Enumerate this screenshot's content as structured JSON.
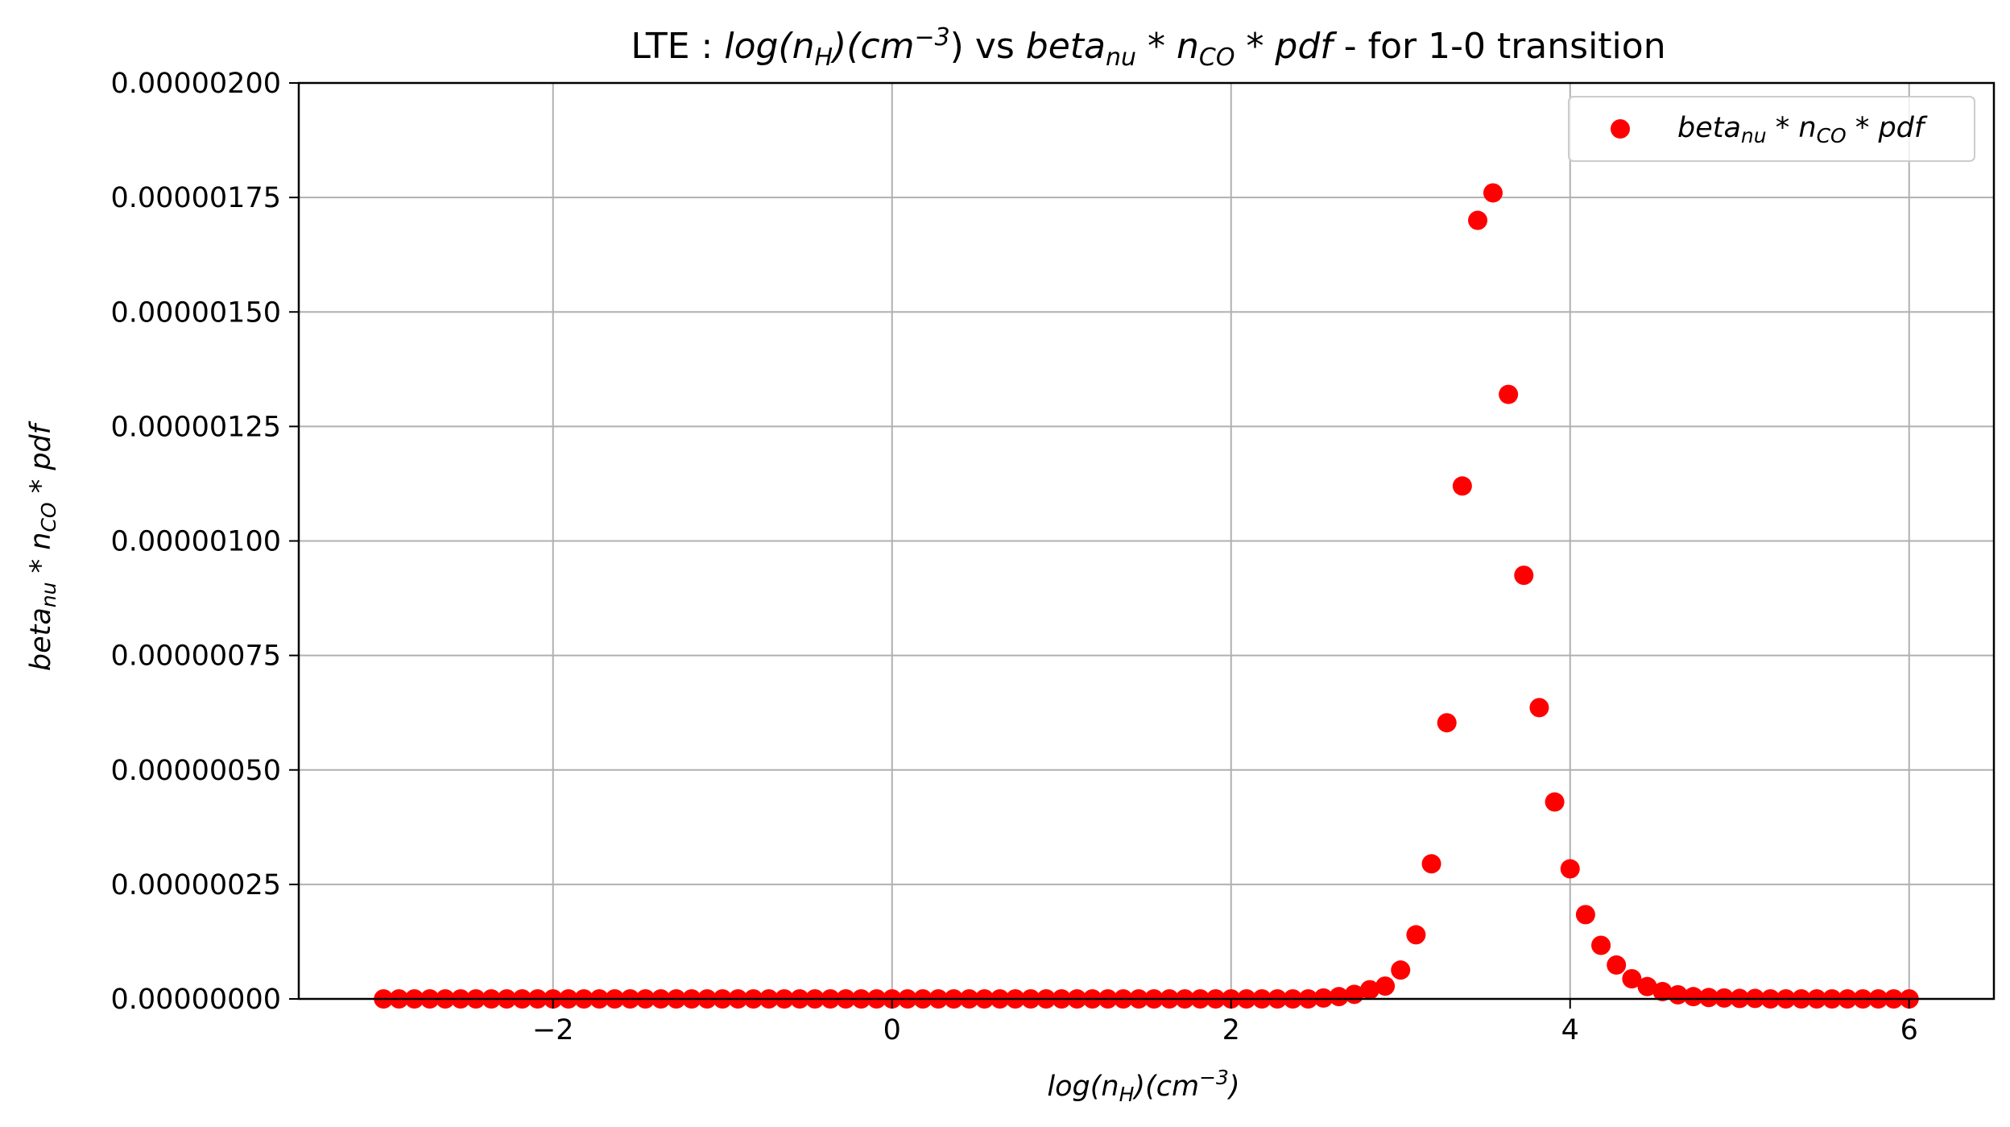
{
  "chart_data": {
    "type": "scatter",
    "title": {
      "prefix": "LTE : ",
      "x_quantity": "log(n",
      "x_sub": "H",
      "x_mid": ")(cm",
      "x_sup": "−3",
      "x_end": ")",
      "vs": " vs ",
      "y_beta": "beta",
      "y_sub_nu": "nu",
      "y_star1": " * n",
      "y_sub_co": "CO",
      "y_star2": " * pdf",
      "suffix": " - for 1-0 transition"
    },
    "xlabel": {
      "main": "log(n",
      "sub": "H",
      "mid": ")(cm",
      "sup": "−3",
      "end": ")"
    },
    "ylabel": {
      "beta": "beta",
      "sub_nu": "nu",
      "star1": " * n",
      "sub_co": "CO",
      "star2": " * pdf"
    },
    "legend": {
      "position": "top-right",
      "beta": "beta",
      "sub_nu": "nu",
      "star1": " * n",
      "sub_co": "CO",
      "star2": " * pdf"
    },
    "xlim": [
      -3.5,
      6.5
    ],
    "ylim": [
      0,
      2e-06
    ],
    "grid": true,
    "marker_color": "#ff0000",
    "x_ticks": [
      -2,
      0,
      2,
      4,
      6
    ],
    "x_tick_labels": [
      "−2",
      "0",
      "2",
      "4",
      "6"
    ],
    "y_ticks": [
      0,
      2.5e-07,
      5e-07,
      7.5e-07,
      1e-06,
      1.25e-06,
      1.5e-06,
      1.75e-06,
      2e-06
    ],
    "y_tick_labels": [
      "0.00000000",
      "0.00000025",
      "0.00000050",
      "0.00000075",
      "0.00000100",
      "0.00000125",
      "0.00000150",
      "0.00000175",
      "0.00000200"
    ],
    "series": [
      {
        "x": [
          -3.0,
          -2.909,
          -2.818,
          -2.727,
          -2.636,
          -2.545,
          -2.455,
          -2.364,
          -2.273,
          -2.182,
          -2.091,
          -2.0,
          -1.909,
          -1.818,
          -1.727,
          -1.636,
          -1.545,
          -1.455,
          -1.364,
          -1.273,
          -1.182,
          -1.091,
          -1.0,
          -0.909,
          -0.818,
          -0.727,
          -0.636,
          -0.545,
          -0.455,
          -0.364,
          -0.273,
          -0.182,
          -0.091,
          0.0,
          0.091,
          0.182,
          0.273,
          0.364,
          0.455,
          0.545,
          0.636,
          0.727,
          0.818,
          0.909,
          1.0,
          1.091,
          1.182,
          1.273,
          1.364,
          1.455,
          1.545,
          1.636,
          1.727,
          1.818,
          1.909,
          2.0,
          2.091,
          2.182,
          2.273,
          2.364,
          2.455,
          2.545,
          2.636,
          2.727,
          2.818,
          2.909,
          3.0,
          3.091,
          3.182,
          3.273,
          3.364,
          3.455,
          3.545,
          3.636,
          3.727,
          3.818,
          3.909,
          4.0,
          4.091,
          4.182,
          4.273,
          4.364,
          4.455,
          4.545,
          4.636,
          4.727,
          4.818,
          4.909,
          5.0,
          5.091,
          5.182,
          5.273,
          5.364,
          5.455,
          5.545,
          5.636,
          5.727,
          5.818,
          5.909,
          6.0
        ],
        "y": [
          0,
          0,
          0,
          0,
          0,
          0,
          0,
          0,
          0,
          0,
          0,
          0,
          0,
          0,
          0,
          0,
          0,
          0,
          0,
          0,
          0,
          0,
          0,
          0,
          0,
          0,
          0,
          0,
          0,
          0,
          0,
          0,
          0,
          0,
          0,
          0,
          0,
          0,
          0,
          0,
          0,
          0,
          0,
          0,
          0,
          0,
          0,
          0,
          0,
          0,
          0,
          0,
          0,
          0,
          0,
          0,
          0,
          0,
          0,
          0,
          0,
          2e-09,
          5e-09,
          1e-08,
          2e-08,
          2.8e-08,
          6.3e-08,
          1.4e-07,
          2.95e-07,
          6.03e-07,
          1.12e-06,
          1.7e-06,
          1.76e-06,
          1.32e-06,
          9.25e-07,
          6.36e-07,
          4.3e-07,
          2.84e-07,
          1.84e-07,
          1.17e-07,
          7.4e-08,
          4.4e-08,
          2.7e-08,
          1.6e-08,
          9e-09,
          5e-09,
          3e-09,
          2e-09,
          1e-09,
          1e-09,
          0,
          0,
          0,
          0,
          0,
          0,
          0,
          0,
          0,
          0
        ]
      }
    ]
  }
}
